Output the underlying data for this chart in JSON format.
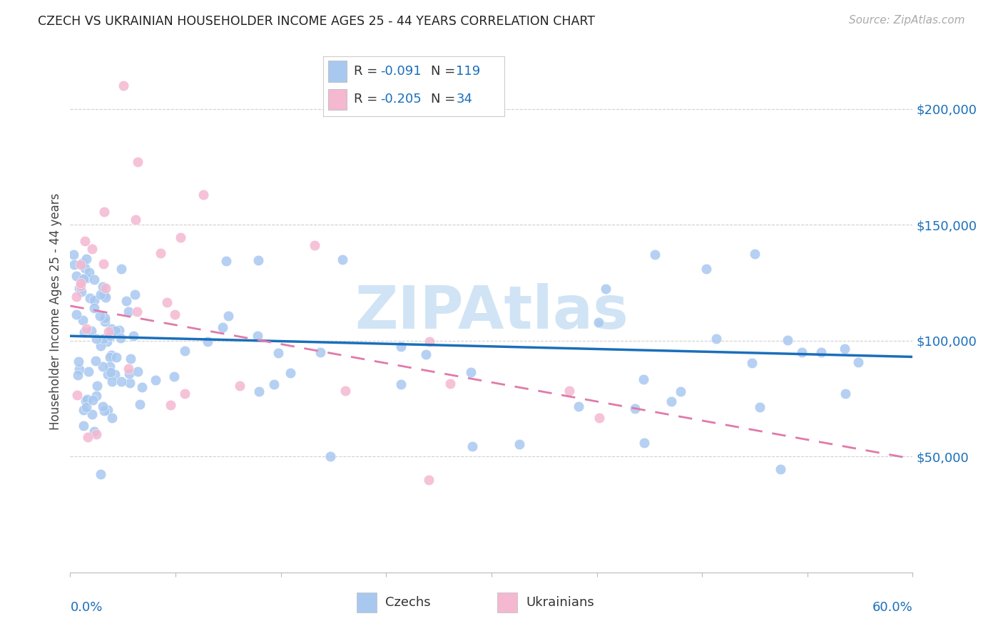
{
  "title": "CZECH VS UKRAINIAN HOUSEHOLDER INCOME AGES 25 - 44 YEARS CORRELATION CHART",
  "source": "Source: ZipAtlas.com",
  "ylabel": "Householder Income Ages 25 - 44 years",
  "xmin": 0.0,
  "xmax": 0.6,
  "ymin": 0,
  "ymax": 225000,
  "yticks": [
    0,
    50000,
    100000,
    150000,
    200000
  ],
  "ytick_labels": [
    "",
    "$50,000",
    "$100,000",
    "$150,000",
    "$200,000"
  ],
  "xtick_positions": [
    0.0,
    0.075,
    0.15,
    0.225,
    0.3,
    0.375,
    0.45,
    0.525,
    0.6
  ],
  "czech_R": -0.091,
  "czech_N": 119,
  "ukr_R": -0.205,
  "ukr_N": 34,
  "czech_dot_color": "#a8c8f0",
  "ukr_dot_color": "#f4b8d0",
  "czech_line_color": "#1a6fba",
  "ukr_line_color": "#e07aaa",
  "legend_text_color": "#1a6fba",
  "legend_dark_color": "#333333",
  "watermark_color": "#d0e4f5",
  "bg_color": "#ffffff",
  "grid_color": "#d0d0d0",
  "czech_line_intercept": 102000,
  "czech_line_slope": -15000,
  "ukr_line_intercept": 115000,
  "ukr_line_slope": -110000,
  "czech_seed": 42,
  "ukr_seed": 123
}
